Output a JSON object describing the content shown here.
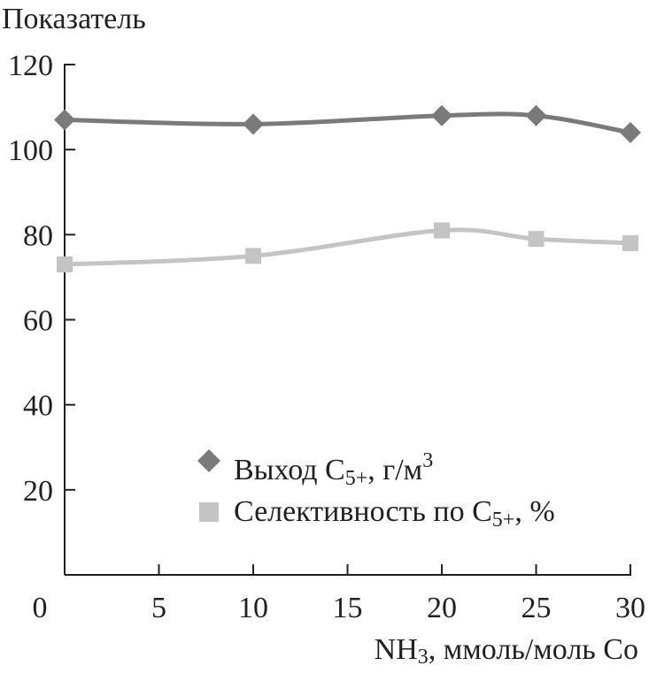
{
  "chart_data": {
    "type": "line",
    "ylabel": "Показатель",
    "xlabel": {
      "prefix": "NH",
      "sub": "3",
      "suffix": ", ммоль/моль Co"
    },
    "xlim": [
      0,
      30
    ],
    "ylim": [
      0,
      120
    ],
    "x_ticks": [
      0,
      5,
      10,
      15,
      20,
      25,
      30
    ],
    "y_ticks": [
      20,
      40,
      60,
      80,
      100,
      120
    ],
    "grid": false,
    "legend_position": "bottom-right",
    "series": [
      {
        "key": "yield",
        "legend": {
          "prefix": "Выход C",
          "sub": "5+",
          "suffix": ", г/м",
          "sup": "3"
        },
        "marker": "diamond",
        "color": "#7a7a7a",
        "x": [
          0,
          10,
          20,
          25,
          30
        ],
        "y": [
          107,
          106,
          108,
          108,
          104
        ]
      },
      {
        "key": "selectivity",
        "legend": {
          "prefix": "Селективность по C",
          "sub": "5+",
          "suffix": ", %",
          "sup": ""
        },
        "marker": "square",
        "color": "#c4c4c4",
        "x": [
          0,
          10,
          20,
          25,
          30
        ],
        "y": [
          73,
          75,
          81,
          79,
          78
        ]
      }
    ]
  }
}
